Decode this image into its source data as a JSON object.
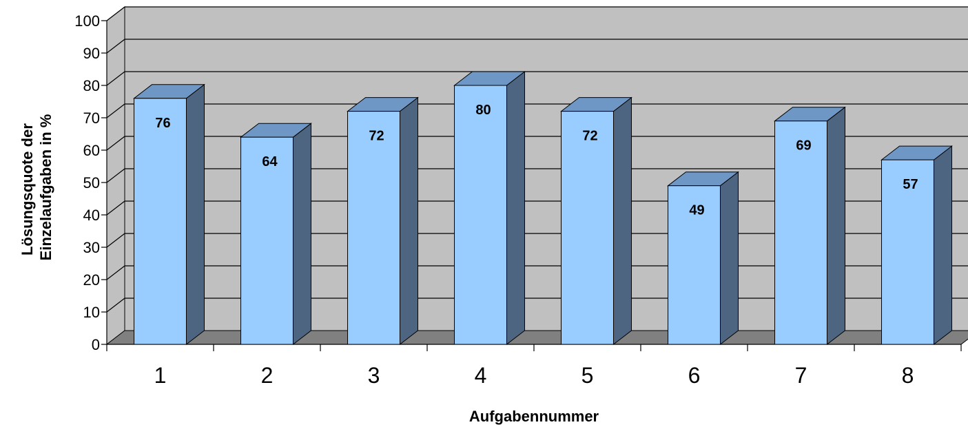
{
  "chart_data": {
    "type": "bar",
    "categories": [
      "1",
      "2",
      "3",
      "4",
      "5",
      "6",
      "7",
      "8"
    ],
    "values": [
      76,
      64,
      72,
      80,
      72,
      49,
      69,
      57
    ],
    "xlabel": "Aufgabennummer",
    "ylabel_lines": [
      "Lösungsquote der",
      "Einzelaufgaben in %"
    ],
    "ylim": [
      0,
      100
    ],
    "yticks": [
      0,
      10,
      20,
      30,
      40,
      50,
      60,
      70,
      80,
      90,
      100
    ],
    "grid": true,
    "style": "3d",
    "colors": {
      "bar_front": "#99ccff",
      "bar_top": "#6f97c6",
      "bar_side": "#4d6580",
      "back_wall": "#c0c0c0",
      "floor": "#808080"
    }
  }
}
